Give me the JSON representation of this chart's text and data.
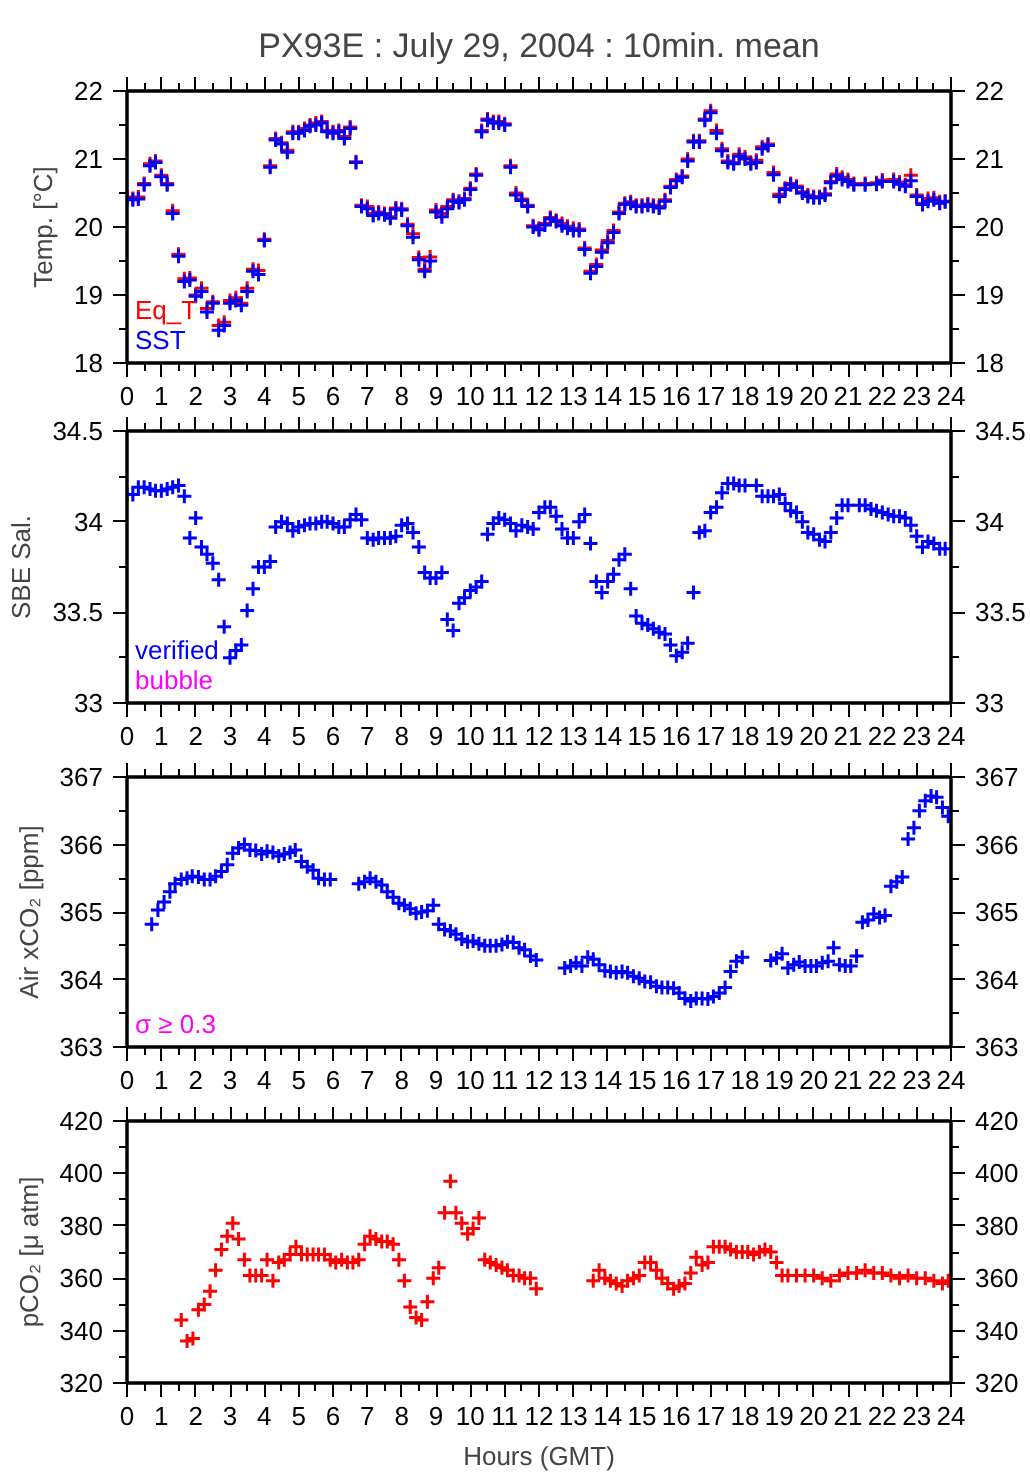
{
  "chart_data": [
    {
      "type": "scatter",
      "title": "PX93E : July 29, 2004 : 10min. mean",
      "ylabel": "Temp. [°C]",
      "xlim": [
        0,
        24
      ],
      "xticks": [
        0,
        1,
        2,
        3,
        4,
        5,
        6,
        7,
        8,
        9,
        10,
        11,
        12,
        13,
        14,
        15,
        16,
        17,
        18,
        19,
        20,
        21,
        22,
        23,
        24
      ],
      "ylim": [
        18,
        22
      ],
      "yticks": [
        18,
        19,
        20,
        21,
        22
      ],
      "y2lim": [
        18,
        22
      ],
      "y2ticks": [
        18,
        19,
        20,
        21,
        22
      ],
      "marker": "cross",
      "legend": "bottom left",
      "grid": false,
      "x": [
        0.0,
        0.17,
        0.33,
        0.5,
        0.67,
        0.83,
        1.0,
        1.17,
        1.33,
        1.5,
        1.67,
        1.83,
        2.0,
        2.17,
        2.33,
        2.5,
        2.67,
        2.83,
        3.0,
        3.17,
        3.33,
        3.5,
        3.67,
        3.83,
        4.0,
        4.17,
        4.33,
        4.5,
        4.67,
        4.83,
        5.0,
        5.17,
        5.33,
        5.5,
        5.67,
        5.83,
        6.0,
        6.17,
        6.33,
        6.5,
        6.67,
        6.83,
        7.0,
        7.17,
        7.33,
        7.5,
        7.67,
        7.83,
        8.0,
        8.17,
        8.33,
        8.5,
        8.67,
        8.83,
        9.0,
        9.17,
        9.33,
        9.5,
        9.67,
        9.83,
        10.0,
        10.17,
        10.33,
        10.5,
        10.67,
        10.83,
        11.0,
        11.17,
        11.33,
        11.5,
        11.67,
        11.83,
        12.0,
        12.17,
        12.33,
        12.5,
        12.67,
        12.83,
        13.0,
        13.17,
        13.33,
        13.5,
        13.67,
        13.83,
        14.0,
        14.17,
        14.33,
        14.5,
        14.67,
        14.83,
        15.0,
        15.17,
        15.33,
        15.5,
        15.67,
        15.83,
        16.0,
        16.17,
        16.33,
        16.5,
        16.67,
        16.83,
        17.0,
        17.17,
        17.33,
        17.5,
        17.67,
        17.83,
        18.0,
        18.17,
        18.33,
        18.5,
        18.67,
        18.83,
        19.0,
        19.17,
        19.33,
        19.5,
        19.67,
        19.83,
        20.0,
        20.17,
        20.33,
        20.5,
        20.67,
        20.83,
        21.0,
        21.17,
        21.5,
        21.83,
        22.0,
        22.33,
        22.5,
        22.67,
        22.83,
        23.0,
        23.17,
        23.33,
        23.5,
        23.67,
        23.83
      ],
      "series": [
        {
          "name": "Eq_T",
          "color": "#ff0000",
          "values": [
            20.44,
            20.42,
            20.44,
            20.64,
            20.93,
            20.97,
            20.76,
            20.64,
            20.24,
            19.6,
            19.24,
            19.25,
            19.0,
            19.1,
            18.8,
            18.9,
            18.55,
            18.6,
            18.92,
            18.96,
            18.88,
            19.1,
            19.38,
            19.36,
            19.82,
            20.9,
            21.3,
            21.24,
            21.13,
            21.4,
            21.4,
            21.45,
            21.5,
            21.53,
            21.55,
            21.42,
            21.4,
            21.42,
            21.33,
            21.47,
            20.96,
            20.32,
            20.3,
            20.2,
            20.22,
            20.2,
            20.15,
            20.28,
            20.27,
            20.04,
            19.9,
            19.55,
            19.38,
            19.56,
            20.25,
            20.2,
            20.3,
            20.4,
            20.38,
            20.42,
            20.57,
            20.78,
            21.42,
            21.59,
            21.55,
            21.55,
            21.52,
            20.9,
            20.5,
            20.41,
            20.32,
            20.02,
            19.98,
            20.05,
            20.14,
            20.1,
            20.05,
            20.01,
            19.98,
            19.97,
            19.69,
            19.35,
            19.45,
            19.66,
            19.8,
            19.95,
            20.22,
            20.35,
            20.37,
            20.32,
            20.32,
            20.34,
            20.32,
            20.3,
            20.4,
            20.6,
            20.7,
            20.75,
            21.0,
            21.27,
            21.27,
            21.59,
            21.71,
            21.42,
            21.15,
            20.97,
            20.95,
            21.07,
            21.03,
            20.95,
            20.98,
            21.18,
            21.22,
            20.8,
            20.48,
            20.57,
            20.64,
            20.6,
            20.52,
            20.47,
            20.45,
            20.45,
            20.49,
            20.67,
            20.78,
            20.73,
            20.7,
            20.64,
            20.64,
            20.65,
            20.69,
            20.7,
            20.66,
            20.62,
            20.76,
            20.47,
            20.35,
            20.42,
            20.43,
            20.37,
            20.38
          ]
        },
        {
          "name": "SST",
          "color": "#0000ff",
          "values": [
            20.42,
            20.4,
            20.41,
            20.62,
            20.9,
            20.95,
            20.74,
            20.62,
            20.2,
            19.57,
            19.2,
            19.22,
            18.98,
            19.05,
            18.75,
            18.88,
            18.48,
            18.55,
            18.88,
            18.92,
            18.85,
            19.05,
            19.35,
            19.3,
            19.8,
            20.88,
            21.28,
            21.22,
            21.1,
            21.38,
            21.38,
            21.42,
            21.48,
            21.5,
            21.53,
            21.4,
            21.38,
            21.4,
            21.3,
            21.45,
            20.95,
            20.3,
            20.27,
            20.17,
            20.2,
            20.18,
            20.13,
            20.26,
            20.25,
            20.02,
            19.85,
            19.52,
            19.35,
            19.5,
            20.22,
            20.15,
            20.27,
            20.38,
            20.36,
            20.4,
            20.55,
            20.76,
            21.4,
            21.57,
            21.53,
            21.53,
            21.5,
            20.88,
            20.47,
            20.39,
            20.3,
            20.0,
            19.96,
            20.03,
            20.12,
            20.08,
            20.02,
            19.98,
            19.95,
            19.95,
            19.67,
            19.32,
            19.42,
            19.63,
            19.77,
            19.92,
            20.2,
            20.33,
            20.35,
            20.3,
            20.3,
            20.32,
            20.3,
            20.28,
            20.38,
            20.58,
            20.68,
            20.73,
            20.97,
            21.25,
            21.25,
            21.57,
            21.68,
            21.38,
            21.12,
            20.95,
            20.93,
            21.04,
            21.0,
            20.93,
            20.95,
            21.15,
            21.2,
            20.77,
            20.45,
            20.55,
            20.62,
            20.58,
            20.5,
            20.45,
            20.43,
            20.43,
            20.47,
            20.65,
            20.75,
            20.7,
            20.67,
            20.62,
            20.62,
            20.63,
            20.67,
            20.67,
            20.63,
            20.6,
            20.68,
            20.45,
            20.33,
            20.38,
            20.4,
            20.35,
            20.37
          ]
        }
      ]
    },
    {
      "type": "scatter",
      "ylabel": "SBE Sal.",
      "xlim": [
        0,
        24
      ],
      "xticks": [
        0,
        1,
        2,
        3,
        4,
        5,
        6,
        7,
        8,
        9,
        10,
        11,
        12,
        13,
        14,
        15,
        16,
        17,
        18,
        19,
        20,
        21,
        22,
        23,
        24
      ],
      "ylim": [
        33,
        34.5
      ],
      "yticks": [
        33,
        33.5,
        34,
        34.5
      ],
      "y2lim": [
        33,
        34.5
      ],
      "y2ticks": [
        33,
        33.5,
        34,
        34.5
      ],
      "marker": "cross",
      "legend": "bottom left",
      "grid": false,
      "series": [
        {
          "name": "verified",
          "color": "#0000ff",
          "x": [
            0.0,
            0.17,
            0.33,
            0.5,
            0.67,
            0.83,
            1.0,
            1.17,
            1.33,
            1.5,
            1.67,
            1.83,
            2.0,
            2.17,
            2.33,
            2.5,
            2.67,
            2.83,
            3.0,
            3.17,
            3.33,
            3.5,
            3.67,
            3.83,
            4.0,
            4.17,
            4.33,
            4.5,
            4.67,
            4.83,
            5.0,
            5.17,
            5.33,
            5.5,
            5.67,
            5.83,
            6.0,
            6.17,
            6.33,
            6.5,
            6.67,
            6.83,
            7.0,
            7.17,
            7.33,
            7.5,
            7.67,
            7.83,
            8.0,
            8.17,
            8.33,
            8.5,
            8.67,
            8.83,
            9.0,
            9.17,
            9.33,
            9.5,
            9.67,
            9.83,
            10.0,
            10.17,
            10.33,
            10.5,
            10.67,
            10.83,
            11.0,
            11.17,
            11.33,
            11.5,
            11.67,
            11.83,
            12.0,
            12.17,
            12.33,
            12.5,
            12.67,
            12.83,
            13.0,
            13.17,
            13.33,
            13.5,
            13.67,
            13.83,
            14.0,
            14.17,
            14.33,
            14.5,
            14.67,
            14.83,
            15.0,
            15.17,
            15.33,
            15.5,
            15.67,
            15.83,
            16.0,
            16.17,
            16.33,
            16.5,
            16.67,
            16.83,
            17.0,
            17.17,
            17.33,
            17.5,
            17.67,
            17.83,
            18.0,
            18.33,
            18.5,
            18.67,
            18.83,
            19.0,
            19.17,
            19.33,
            19.5,
            19.67,
            19.83,
            20.0,
            20.17,
            20.33,
            20.5,
            20.67,
            20.83,
            21.0,
            21.33,
            21.5,
            21.67,
            21.83,
            22.0,
            22.17,
            22.33,
            22.5,
            22.67,
            22.83,
            23.0,
            23.17,
            23.33,
            23.5,
            23.67,
            23.83
          ],
          "values": [
            34.15,
            34.15,
            34.19,
            34.19,
            34.18,
            34.17,
            34.17,
            34.18,
            34.19,
            34.2,
            34.14,
            33.91,
            34.02,
            33.86,
            33.82,
            33.77,
            33.68,
            33.42,
            33.25,
            33.29,
            33.32,
            33.51,
            33.63,
            33.75,
            33.75,
            33.78,
            33.97,
            34.0,
            33.99,
            33.95,
            33.97,
            33.98,
            33.99,
            33.99,
            34.0,
            34.0,
            33.99,
            33.97,
            33.97,
            34.01,
            34.04,
            34.01,
            33.91,
            33.9,
            33.91,
            33.91,
            33.91,
            33.92,
            33.98,
            33.99,
            33.94,
            33.86,
            33.72,
            33.69,
            33.69,
            33.72,
            33.46,
            33.4,
            33.55,
            33.58,
            33.62,
            33.64,
            33.67,
            33.93,
            33.99,
            34.02,
            34.01,
            33.99,
            33.95,
            33.98,
            33.97,
            33.96,
            34.05,
            34.08,
            34.08,
            34.03,
            33.96,
            33.91,
            33.91,
            34.0,
            34.04,
            33.88,
            33.67,
            33.61,
            33.67,
            33.71,
            33.79,
            33.82,
            33.63,
            33.48,
            33.44,
            33.43,
            33.41,
            33.39,
            33.38,
            33.32,
            33.26,
            33.28,
            33.33,
            33.61,
            33.94,
            33.95,
            34.05,
            34.08,
            34.16,
            34.21,
            34.21,
            34.2,
            34.2,
            34.2,
            34.14,
            34.14,
            34.14,
            34.15,
            34.1,
            34.06,
            34.05,
            34.0,
            33.94,
            33.93,
            33.9,
            33.89,
            33.94,
            34.02,
            34.09,
            34.09,
            34.09,
            34.09,
            34.07,
            34.06,
            34.05,
            34.04,
            34.03,
            34.03,
            34.02,
            33.98,
            33.92,
            33.86,
            33.89,
            33.88,
            33.85,
            33.85
          ]
        },
        {
          "name": "bubble",
          "color": "#ff00ff"
        }
      ]
    },
    {
      "type": "scatter",
      "ylabel": "Air xCO₂ [ppm]",
      "xlim": [
        0,
        24
      ],
      "xticks": [
        0,
        1,
        2,
        3,
        4,
        5,
        6,
        7,
        8,
        9,
        10,
        11,
        12,
        13,
        14,
        15,
        16,
        17,
        18,
        19,
        20,
        21,
        22,
        23,
        24
      ],
      "ylim": [
        363,
        367
      ],
      "yticks": [
        363,
        364,
        365,
        366,
        367
      ],
      "y2lim": [
        363,
        367
      ],
      "y2ticks": [
        363,
        364,
        365,
        366,
        367
      ],
      "marker": "cross",
      "grid": false,
      "annotations": [
        "σ ≥ 0.3"
      ],
      "series": [
        {
          "color": "#0000ff",
          "x": [
            0.72,
            0.9,
            1.08,
            1.25,
            1.4,
            1.58,
            1.75,
            1.9,
            2.08,
            2.25,
            2.42,
            2.58,
            2.75,
            2.92,
            3.08,
            3.25,
            3.42,
            3.58,
            3.75,
            3.92,
            4.08,
            4.25,
            4.42,
            4.58,
            4.75,
            4.9,
            5.08,
            5.25,
            5.42,
            5.58,
            5.75,
            5.92,
            6.75,
            6.92,
            7.08,
            7.25,
            7.42,
            7.58,
            7.75,
            7.92,
            8.08,
            8.25,
            8.42,
            8.58,
            8.75,
            8.92,
            9.08,
            9.25,
            9.42,
            9.58,
            9.75,
            9.92,
            10.08,
            10.25,
            10.42,
            10.58,
            10.75,
            10.92,
            11.08,
            11.25,
            11.42,
            11.58,
            11.75,
            11.92,
            12.75,
            12.92,
            13.08,
            13.25,
            13.42,
            13.58,
            13.75,
            13.92,
            14.08,
            14.25,
            14.42,
            14.58,
            14.75,
            14.92,
            15.08,
            15.25,
            15.42,
            15.58,
            15.75,
            15.92,
            16.08,
            16.25,
            16.42,
            16.58,
            16.75,
            16.92,
            17.08,
            17.25,
            17.42,
            17.58,
            17.75,
            17.92,
            18.75,
            18.92,
            19.08,
            19.25,
            19.42,
            19.58,
            19.75,
            19.92,
            20.08,
            20.25,
            20.42,
            20.58,
            20.75,
            20.92,
            21.08,
            21.25,
            21.42,
            21.58,
            21.75,
            21.92,
            22.08,
            22.25,
            22.42,
            22.58,
            22.75,
            22.92,
            23.08,
            23.25,
            23.42,
            23.58,
            23.75,
            23.92
          ],
          "values": [
            364.82,
            365.03,
            365.15,
            365.3,
            365.42,
            365.48,
            365.5,
            365.53,
            365.52,
            365.48,
            365.48,
            365.53,
            365.6,
            365.7,
            365.87,
            365.95,
            366.0,
            365.92,
            365.91,
            365.86,
            365.9,
            365.88,
            365.83,
            365.86,
            365.88,
            365.92,
            365.75,
            365.67,
            365.62,
            365.5,
            365.48,
            365.48,
            365.42,
            365.45,
            365.5,
            365.45,
            365.4,
            365.3,
            365.22,
            365.13,
            365.1,
            365.05,
            364.98,
            365.0,
            365.02,
            365.1,
            364.82,
            364.74,
            364.72,
            364.67,
            364.6,
            364.56,
            364.57,
            364.53,
            364.5,
            364.5,
            364.5,
            364.52,
            364.56,
            364.55,
            364.47,
            364.44,
            364.35,
            364.29,
            364.17,
            364.2,
            364.25,
            364.2,
            364.33,
            364.3,
            364.22,
            364.13,
            364.12,
            364.1,
            364.12,
            364.1,
            364.05,
            364.02,
            363.97,
            363.96,
            363.9,
            363.88,
            363.88,
            363.87,
            363.8,
            363.72,
            363.68,
            363.72,
            363.72,
            363.71,
            363.75,
            363.8,
            363.88,
            364.12,
            364.27,
            364.33,
            364.28,
            364.32,
            364.38,
            364.17,
            364.22,
            364.26,
            364.2,
            364.2,
            364.2,
            364.25,
            364.27,
            364.47,
            364.22,
            364.2,
            364.2,
            364.35,
            364.85,
            364.88,
            364.97,
            364.92,
            364.95,
            365.38,
            365.45,
            365.52,
            366.08,
            366.25,
            366.5,
            366.65,
            366.72,
            366.7,
            366.55,
            366.42
          ]
        }
      ]
    },
    {
      "type": "scatter",
      "ylabel": "pCO₂ [μ atm]",
      "xlabel": "Hours (GMT)",
      "xlim": [
        0,
        24
      ],
      "xticks": [
        0,
        1,
        2,
        3,
        4,
        5,
        6,
        7,
        8,
        9,
        10,
        11,
        12,
        13,
        14,
        15,
        16,
        17,
        18,
        19,
        20,
        21,
        22,
        23,
        24
      ],
      "ylim": [
        320,
        420
      ],
      "yticks": [
        320,
        340,
        360,
        380,
        400,
        420
      ],
      "y2lim": [
        320,
        420
      ],
      "y2ticks": [
        320,
        340,
        360,
        380,
        400,
        420
      ],
      "marker": "cross",
      "grid": false,
      "series": [
        {
          "color": "#ff0000",
          "x": [
            1.58,
            1.75,
            1.92,
            2.08,
            2.25,
            2.42,
            2.58,
            2.75,
            2.92,
            3.08,
            3.25,
            3.42,
            3.58,
            3.75,
            3.92,
            4.08,
            4.25,
            4.42,
            4.58,
            4.75,
            4.92,
            5.08,
            5.25,
            5.42,
            5.58,
            5.75,
            5.92,
            6.08,
            6.25,
            6.42,
            6.58,
            6.75,
            6.92,
            7.08,
            7.25,
            7.42,
            7.58,
            7.75,
            7.92,
            8.08,
            8.25,
            8.42,
            8.58,
            8.75,
            8.92,
            9.08,
            9.25,
            9.42,
            9.58,
            9.75,
            9.92,
            10.08,
            10.25,
            10.42,
            10.58,
            10.75,
            10.92,
            11.08,
            11.25,
            11.42,
            11.58,
            11.75,
            11.92,
            13.58,
            13.75,
            13.92,
            14.08,
            14.25,
            14.42,
            14.58,
            14.75,
            14.92,
            15.08,
            15.25,
            15.42,
            15.58,
            15.75,
            15.92,
            16.08,
            16.25,
            16.42,
            16.58,
            16.75,
            16.92,
            17.08,
            17.25,
            17.42,
            17.58,
            17.75,
            17.92,
            18.08,
            18.25,
            18.42,
            18.58,
            18.75,
            18.92,
            19.08,
            19.25,
            19.5,
            19.75,
            20.0,
            20.25,
            20.5,
            20.75,
            21.0,
            21.25,
            21.5,
            21.75,
            22.0,
            22.25,
            22.5,
            22.75,
            23.0,
            23.25,
            23.5,
            23.75,
            23.92
          ],
          "values": [
            344,
            336,
            337,
            348,
            350,
            355,
            363,
            371,
            376,
            381,
            375,
            367,
            361,
            361,
            361,
            367,
            359,
            366,
            367,
            369,
            372,
            369,
            369,
            369,
            369,
            369,
            367,
            366,
            367,
            366,
            366,
            367,
            373,
            376,
            375,
            374,
            374,
            373,
            367,
            359,
            349,
            345,
            344,
            351,
            360,
            364,
            385,
            397,
            385,
            381,
            377,
            379,
            383,
            367,
            366,
            365,
            364,
            363,
            361,
            361,
            360,
            360,
            356,
            359,
            363,
            360,
            359,
            358,
            357,
            359,
            360,
            361,
            366,
            366,
            363,
            360,
            358,
            356,
            357,
            358,
            362,
            368,
            365,
            366,
            372,
            372,
            372,
            371,
            370,
            370,
            370,
            369,
            370,
            371,
            370,
            366,
            361,
            361,
            361,
            361,
            361,
            360,
            359,
            361,
            362,
            362,
            363,
            362,
            362,
            361,
            360,
            361,
            360,
            360,
            359,
            358,
            359
          ]
        }
      ]
    }
  ]
}
